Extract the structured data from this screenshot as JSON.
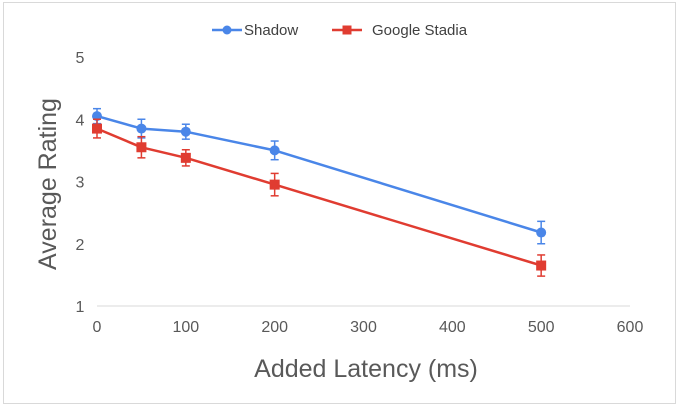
{
  "chart_data": {
    "type": "line",
    "title": "",
    "xlabel": "Added Latency (ms)",
    "ylabel": "Average Rating",
    "xlim": [
      0,
      600
    ],
    "ylim": [
      1,
      5
    ],
    "x_ticks": [
      0,
      100,
      200,
      300,
      400,
      500,
      600
    ],
    "y_ticks": [
      1,
      2,
      3,
      4,
      5
    ],
    "grid": false,
    "legend_position": "top",
    "series": [
      {
        "name": "Shadow",
        "color": "#4a86e8",
        "marker": "circle",
        "x": [
          0,
          50,
          100,
          200,
          500
        ],
        "y": [
          4.05,
          3.85,
          3.8,
          3.5,
          2.18
        ],
        "error": [
          0.12,
          0.15,
          0.12,
          0.15,
          0.18
        ]
      },
      {
        "name": "Google Stadia",
        "color": "#e03c31",
        "marker": "square",
        "x": [
          0,
          50,
          100,
          200,
          500
        ],
        "y": [
          3.85,
          3.55,
          3.38,
          2.95,
          1.65
        ],
        "error": [
          0.15,
          0.17,
          0.13,
          0.18,
          0.17
        ]
      }
    ]
  }
}
